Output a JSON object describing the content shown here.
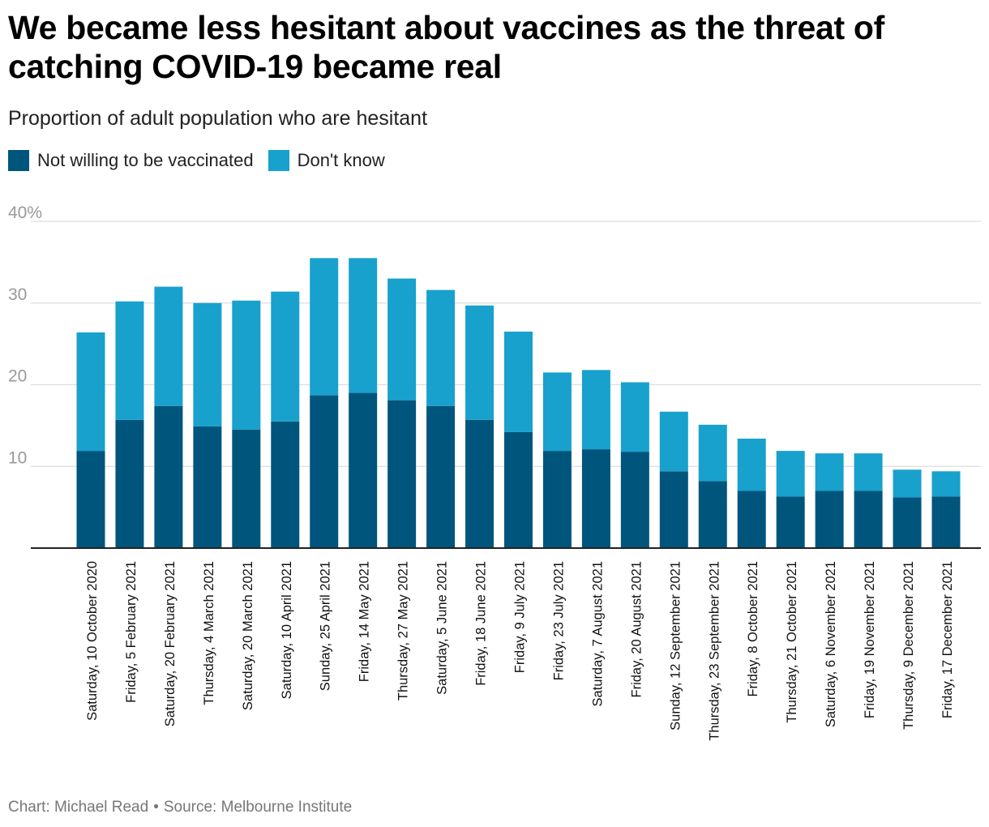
{
  "title": "We became less hesitant about vaccines as the threat of catching COVID-19 became real",
  "subtitle": "Proportion of adult population who are hesitant",
  "legend": [
    {
      "label": "Not willing to be vaccinated",
      "color": "#00557c"
    },
    {
      "label": "Don't know",
      "color": "#18a1cd"
    }
  ],
  "footer": {
    "chart_credit": "Chart: Michael Read",
    "separator": "•",
    "source": "Source: Melbourne Institute"
  },
  "chart_data": {
    "type": "bar",
    "stacked": true,
    "categories": [
      "Saturday, 10 October 2020",
      "Friday, 5 February 2021",
      "Saturday, 20 February 2021",
      "Thursday, 4 March 2021",
      "Saturday, 20 March 2021",
      "Saturday, 10 April 2021",
      "Sunday, 25 April 2021",
      "Friday, 14 May 2021",
      "Thursday, 27 May 2021",
      "Saturday, 5 June 2021",
      "Friday, 18 June 2021",
      "Friday, 9 July 2021",
      "Friday, 23 July 2021",
      "Saturday, 7 August 2021",
      "Friday, 20 August 2021",
      "Sunday, 12 September 2021",
      "Thursday, 23 September 2021",
      "Friday, 8 October 2021",
      "Thursday, 21 October 2021",
      "Saturday, 6 November 2021",
      "Friday, 19 November 2021",
      "Thursday, 9 December 2021",
      "Friday, 17 December 2021"
    ],
    "series": [
      {
        "name": "Not willing to be vaccinated",
        "color": "#00557c",
        "values": [
          11.9,
          15.7,
          17.4,
          14.9,
          14.5,
          15.5,
          18.7,
          19.0,
          18.1,
          17.4,
          15.7,
          14.2,
          11.9,
          12.1,
          11.8,
          9.4,
          8.2,
          7.0,
          6.3,
          7.0,
          7.0,
          6.2,
          6.3
        ]
      },
      {
        "name": "Don't know",
        "color": "#18a1cd",
        "values": [
          14.5,
          14.5,
          14.6,
          15.1,
          15.8,
          15.9,
          16.8,
          16.5,
          14.9,
          14.2,
          14.0,
          12.3,
          9.6,
          9.7,
          8.5,
          7.3,
          6.9,
          6.4,
          5.6,
          4.6,
          4.6,
          3.4,
          3.1
        ]
      }
    ],
    "ylim": [
      0,
      40
    ],
    "yticks": [
      10,
      20,
      30,
      40
    ],
    "ytick_labels": [
      "10",
      "20",
      "30",
      "40%"
    ],
    "grid": true,
    "legend_position": "top-left"
  }
}
